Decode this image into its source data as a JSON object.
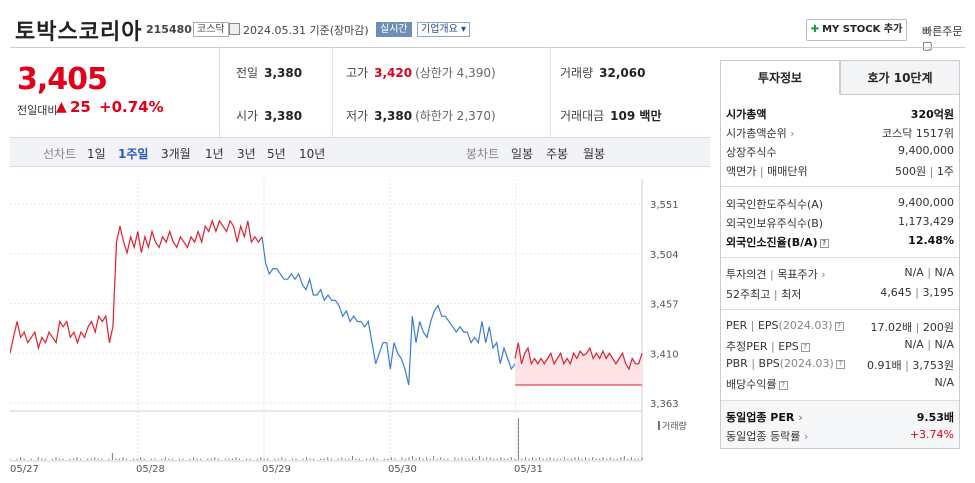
{
  "header": {
    "stock_name": "토박스코리아",
    "stock_code": "215480",
    "market_badge": "코스닥",
    "date_text": "2024.05.31 기준(장마감)",
    "realtime_badge": "실시간",
    "company_overview": "기업개요",
    "mystock_label": "MY STOCK 추가",
    "quick_order": "빠른주문"
  },
  "price": {
    "current": "3,405",
    "change_label": "전일대비",
    "change_arrow": "▲",
    "change_value": "25",
    "change_pct": "+0.74%"
  },
  "quotes": {
    "prev_close_label": "전일",
    "prev_close": "3,380",
    "high_label": "고가",
    "high": "3,420",
    "upper_limit": "(상한가 4,390)",
    "volume_label": "거래량",
    "volume": "32,060",
    "open_label": "시가",
    "open": "3,380",
    "low_label": "저가",
    "low": "3,380",
    "lower_limit": "(하한가 2,370)",
    "value_label": "거래대금",
    "value": "109 백만"
  },
  "periods": {
    "line_chart": "선차트",
    "items": [
      "1일",
      "1주일",
      "3개월",
      "1년",
      "3년",
      "5년",
      "10년"
    ],
    "selected_index": 1,
    "candle_chart": "봉차트",
    "candle_items": [
      "일봉",
      "주봉",
      "월봉"
    ]
  },
  "chart_data": {
    "type": "line",
    "y_ticks": [
      "3,551",
      "3,504",
      "3,457",
      "3,410",
      "3,363"
    ],
    "ylim": [
      3363,
      3551
    ],
    "x_ticks": [
      "05/27",
      "05/28",
      "05/29",
      "05/30",
      "05/31"
    ],
    "volume_label": "거래량",
    "colors": {
      "up": "#e0202e",
      "down": "#3a7bd5",
      "fill": "#fde3e5"
    },
    "series": [
      {
        "color": "up",
        "values": [
          3410,
          3425,
          3440,
          3425,
          3430,
          3420,
          3425,
          3430,
          3415,
          3425,
          3420,
          3430,
          3425,
          3420,
          3440,
          3435,
          3440,
          3425,
          3430,
          3420,
          3430,
          3425,
          3435,
          3440,
          3430,
          3445,
          3440,
          3445,
          3420,
          3435,
          3515,
          3530,
          3515,
          3505,
          3520,
          3510,
          3525,
          3505,
          3520,
          3510,
          3525,
          3515,
          3510,
          3520,
          3515,
          3525,
          3515,
          3510,
          3520,
          3515,
          3510,
          3520,
          3515,
          3525,
          3515,
          3530,
          3525,
          3535,
          3525,
          3535,
          3530,
          3525,
          3535,
          3530,
          3515,
          3530,
          3520,
          3535,
          3515,
          3520,
          3515,
          3520
        ]
      },
      {
        "color": "down",
        "values": [
          3520,
          3495,
          3485,
          3490,
          3490,
          3485,
          3480,
          3480,
          3485,
          3480,
          3485,
          3475,
          3470,
          3480,
          3465,
          3465,
          3470,
          3460,
          3465,
          3460,
          3460,
          3455,
          3445,
          3450,
          3440,
          3445,
          3440,
          3440,
          3435,
          3440,
          3420,
          3400,
          3410,
          3420,
          3420,
          3395,
          3420,
          3410,
          3405,
          3395,
          3380,
          3445,
          3420,
          3440,
          3430,
          3425,
          3440,
          3450,
          3455,
          3445,
          3445,
          3440,
          3435,
          3430,
          3435,
          3430,
          3430,
          3420,
          3425,
          3420,
          3440,
          3420,
          3435,
          3415,
          3420,
          3400,
          3415,
          3405,
          3395,
          3400
        ]
      },
      {
        "color": "up",
        "values": [
          3405,
          3420,
          3400,
          3410,
          3415,
          3400,
          3405,
          3400,
          3405,
          3400,
          3405,
          3410,
          3400,
          3405,
          3410,
          3400,
          3405,
          3400,
          3410,
          3405,
          3412,
          3408,
          3410,
          3415,
          3405,
          3410,
          3405,
          3412,
          3405,
          3410,
          3405,
          3400,
          3405,
          3410,
          3400,
          3395,
          3405,
          3400,
          3400,
          3410
        ]
      }
    ],
    "volume": [
      1,
      0,
      1,
      2,
      1,
      0,
      1,
      0,
      2,
      1,
      1,
      0,
      1,
      2,
      1,
      1,
      0,
      1,
      1,
      2,
      1,
      0,
      1,
      1,
      2,
      1,
      1,
      0,
      1,
      5,
      1,
      1,
      2,
      1,
      0,
      1,
      1,
      2,
      1,
      0,
      1,
      1,
      0,
      1,
      2,
      1,
      1,
      0,
      1,
      1,
      0,
      1,
      2,
      1,
      1,
      0,
      1,
      1,
      2,
      1,
      0,
      1,
      1,
      1,
      2,
      1,
      0,
      1,
      1,
      0,
      1,
      2,
      1,
      1,
      0,
      1,
      1,
      2,
      1,
      0,
      1,
      1,
      0,
      1,
      2,
      1,
      1,
      0,
      1,
      1,
      2,
      1,
      0,
      1,
      2,
      1,
      1,
      3,
      1,
      1,
      0,
      1,
      1,
      2,
      1,
      0,
      1,
      1,
      2,
      1,
      0,
      2,
      1,
      2,
      3,
      1,
      2,
      1,
      2,
      1,
      3,
      1,
      2,
      1,
      1,
      0,
      2,
      1,
      2,
      1,
      1,
      2,
      1,
      3,
      1,
      2,
      2,
      1,
      1,
      2,
      1,
      1,
      2,
      1,
      30,
      1,
      2,
      1,
      2,
      1,
      2,
      1,
      1,
      2,
      1,
      1,
      1,
      2,
      1,
      1,
      2,
      2,
      1,
      2,
      1,
      2,
      1,
      1,
      2,
      1,
      2,
      1,
      1,
      2,
      3,
      1,
      2,
      1,
      1,
      2
    ]
  },
  "invest": {
    "tab_info": "투자정보",
    "tab_orderbook": "호가 10단계",
    "market_cap_label": "시가총액",
    "market_cap": "320억원",
    "rank_label": "시가총액순위",
    "rank": "코스닥 1517위",
    "shares_label": "상장주식수",
    "shares": "9,400,000",
    "par_label": "액면가",
    "trade_unit_label": "매매단위",
    "par": "500원",
    "unit": "1주",
    "foreign_limit_label": "외국인한도주식수(A)",
    "foreign_limit": "9,400,000",
    "foreign_hold_label": "외국인보유주식수(B)",
    "foreign_hold": "1,173,429",
    "foreign_ratio_label": "외국인소진율(B/A)",
    "foreign_ratio": "12.48%",
    "opinion_label": "투자의견",
    "target_label": "목표주가",
    "opinion": "N/A",
    "target": "N/A",
    "w52_high_label": "52주최고",
    "w52_low_label": "최저",
    "w52_high": "4,645",
    "w52_low": "3,195",
    "per_label": "PER",
    "eps_label": "EPS",
    "per_date": "(2024.03)",
    "per": "17.02배",
    "eps": "200원",
    "est_per_label": "추정PER",
    "est_eps_label": "EPS",
    "est_per": "N/A",
    "est_eps": "N/A",
    "pbr_label": "PBR",
    "bps_label": "BPS",
    "pbr_date": "(2024.03)",
    "pbr": "0.91배",
    "bps": "3,753원",
    "dividend_label": "배당수익률",
    "dividend": "N/A",
    "sector_per_label": "동일업종 PER",
    "sector_per": "9.53배",
    "sector_rate_label": "동일업종 등락률",
    "sector_rate": "+3.74%"
  }
}
